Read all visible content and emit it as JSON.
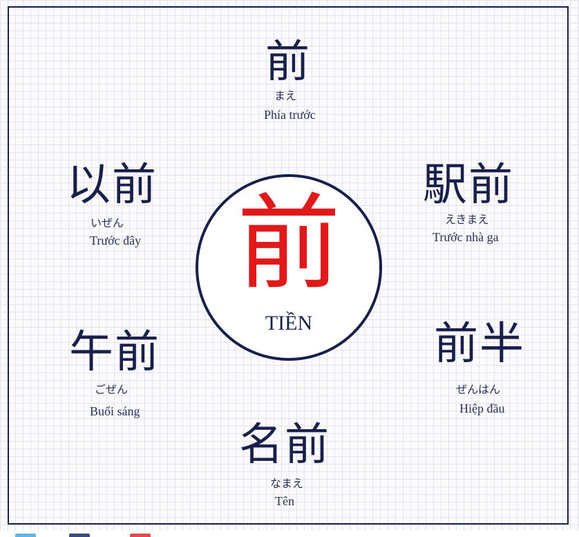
{
  "center": {
    "kanji": "前",
    "label": "TIỀN"
  },
  "words": [
    {
      "kanji": "前",
      "kana": "まえ",
      "meaning": "Phía trước"
    },
    {
      "kanji": "以前",
      "kana": "いぜん",
      "meaning": "Trước đây"
    },
    {
      "kanji": "駅前",
      "kana": "えきまえ",
      "meaning": "Trước nhà ga"
    },
    {
      "kanji": "午前",
      "kana": "ごぜん",
      "meaning": "Buổi sáng"
    },
    {
      "kanji": "前半",
      "kana": "ぜんはん",
      "meaning": "Hiệp đầu"
    },
    {
      "kanji": "名前",
      "kana": "なまえ",
      "meaning": "Tên"
    }
  ],
  "colors": {
    "ink": "#1a1f4a",
    "accent": "#e01a1a",
    "grid": "#e3e3ea"
  }
}
